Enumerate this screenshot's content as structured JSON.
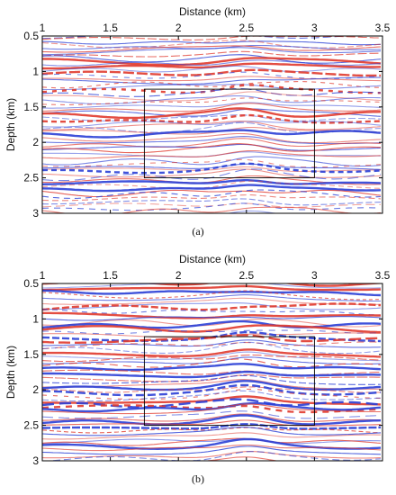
{
  "figures": [
    {
      "caption": "(a)",
      "x_axis": {
        "label": "Distance (km)",
        "range": [
          1,
          3.5
        ],
        "ticks": [
          "1",
          "1.5",
          "2",
          "2.5",
          "3",
          "3.5"
        ],
        "position": "top"
      },
      "y_axis": {
        "label": "Depth (km)",
        "range": [
          0.5,
          3
        ],
        "ticks": [
          "0.5",
          "1",
          "1.5",
          "2",
          "2.5",
          "3"
        ]
      },
      "box": {
        "x": [
          1.75,
          3.0
        ],
        "y": [
          1.25,
          2.5
        ]
      }
    },
    {
      "caption": "(b)",
      "x_axis": {
        "label": "Distance (km)",
        "range": [
          1,
          3.5
        ],
        "ticks": [
          "1",
          "1.5",
          "2",
          "2.5",
          "3",
          "3.5"
        ],
        "position": "top"
      },
      "y_axis": {
        "label": "Depth (km)",
        "range": [
          0.5,
          3
        ],
        "ticks": [
          "0.5",
          "1",
          "1.5",
          "2",
          "2.5",
          "3"
        ]
      },
      "box": {
        "x": [
          1.75,
          3.0
        ],
        "y": [
          1.25,
          2.5
        ]
      }
    }
  ],
  "colors": {
    "positive": "#e03a2e",
    "negative": "#2a3fd6",
    "background": "#ffffff"
  }
}
